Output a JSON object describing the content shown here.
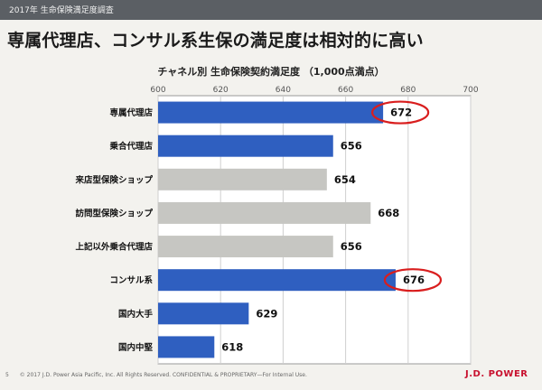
{
  "header": {
    "bar_text": "2017年 生命保険満足度調査",
    "title": "専属代理店、コンサル系生保の満足度は相対的に高い"
  },
  "footer": {
    "page": "5",
    "copyright": "© 2017 J.D. Power Asia Pacific, Inc. All Rights Reserved. CONFIDENTIAL & PROPRIETARY—For Internal Use.",
    "brand": "J.D. POWER"
  },
  "chart_data": {
    "type": "bar",
    "orientation": "horizontal",
    "title": "チャネル別 生命保険契約満足度 （1,000点満点）",
    "xlim": [
      600,
      700
    ],
    "ticks": [
      600,
      620,
      640,
      660,
      680,
      700
    ],
    "grid": true,
    "categories": [
      "専属代理店",
      "乗合代理店",
      "来店型保険ショップ",
      "訪問型保険ショップ",
      "上記以外乗合代理店",
      "コンサル系",
      "国内大手",
      "国内中堅"
    ],
    "values": [
      672,
      656,
      654,
      668,
      656,
      676,
      629,
      618
    ],
    "bar_colors": [
      "#2f5fc0",
      "#2f5fc0",
      "#c6c6c2",
      "#c6c6c2",
      "#c6c6c2",
      "#2f5fc0",
      "#2f5fc0",
      "#2f5fc0"
    ],
    "highlighted": [
      672,
      676
    ],
    "highlight_color": "#d91e1e"
  }
}
